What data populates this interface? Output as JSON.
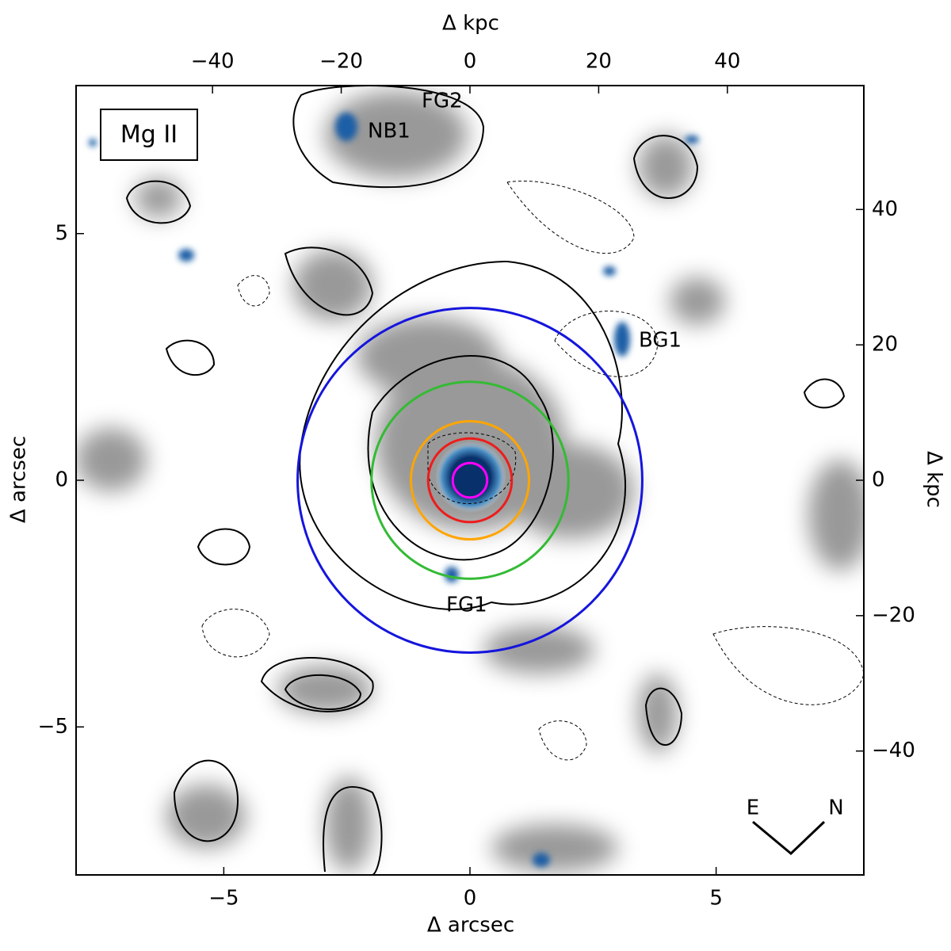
{
  "chart_data": {
    "type": "image",
    "label": "Mg II",
    "xlabel": "Δ arcsec",
    "ylabel": "Δ arcsec",
    "x2label": "Δ kpc",
    "y2label": "Δ kpc",
    "xlim": [
      -8,
      8
    ],
    "ylim": [
      -8,
      8
    ],
    "xticks": [
      {
        "value": -5,
        "label": "−5"
      },
      0,
      5
    ],
    "yticks": [
      {
        "value": -5,
        "label": "−5"
      },
      0,
      5
    ],
    "x2lim": [
      -61.2,
      61.2
    ],
    "x2ticks": [
      {
        "value": -40,
        "label": "−40"
      },
      {
        "value": -20,
        "label": "−20"
      },
      0,
      20,
      40
    ],
    "y2lim": [
      -58.3,
      58.3
    ],
    "y2ticks": [
      {
        "value": -40,
        "label": "−40"
      },
      {
        "value": -20,
        "label": "−20"
      },
      0,
      20,
      40
    ],
    "circles": [
      {
        "radius": 0.35,
        "color": "#ff00ff"
      },
      {
        "radius": 0.85,
        "color": "#ee1c1c"
      },
      {
        "radius": 1.2,
        "color": "#ffa500"
      },
      {
        "radius": 2.0,
        "color": "#33bb33"
      },
      {
        "radius": 3.5,
        "color": "#1515dd"
      }
    ],
    "annotations": [
      "FG2",
      "NB1",
      "BG1",
      "FG1"
    ],
    "compass": [
      "E",
      "N"
    ]
  }
}
